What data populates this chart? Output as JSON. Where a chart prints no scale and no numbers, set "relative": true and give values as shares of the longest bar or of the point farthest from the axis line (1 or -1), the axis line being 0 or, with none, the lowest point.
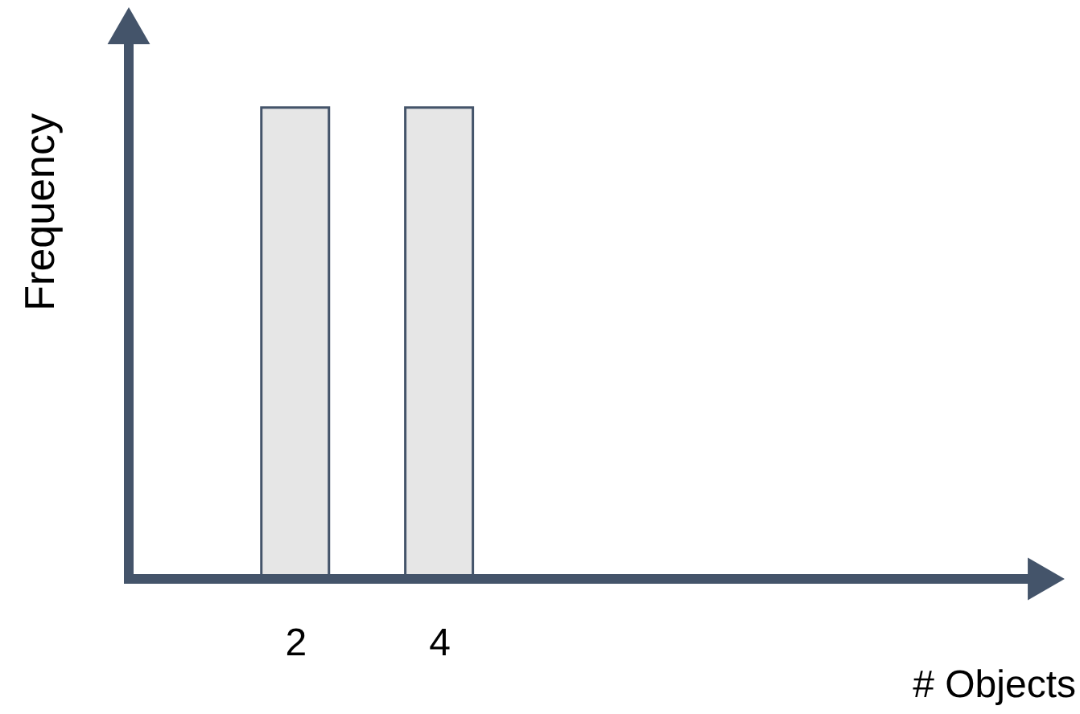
{
  "chart_data": {
    "type": "bar",
    "relative": true,
    "xlabel": "# Objects",
    "ylabel": "Frequency",
    "x": [
      2,
      4
    ],
    "values": [
      1,
      1
    ],
    "color": "#e6e6e6",
    "xlim": [
      -0.2,
      12.1
    ],
    "xticks": [
      2,
      4
    ],
    "grid": false,
    "tick_labels": "x"
  }
}
